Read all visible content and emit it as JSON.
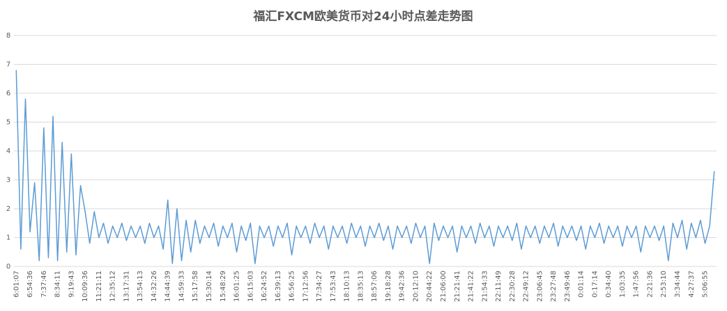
{
  "chart_data": {
    "type": "line",
    "title": "福汇FXCM欧美货币对24小时点差走势图",
    "categories": [
      "6:01:07",
      null,
      null,
      "6:54:36",
      null,
      null,
      "7:37:46",
      null,
      null,
      "8:34:11",
      null,
      null,
      "9:19:43",
      null,
      null,
      "10:09:36",
      null,
      null,
      "11:21:11",
      null,
      null,
      "12:35:12",
      null,
      null,
      "13:17:31",
      null,
      null,
      "13:54:13",
      null,
      null,
      "14:32:26",
      null,
      null,
      "14:44:39",
      null,
      null,
      "14:59:33",
      null,
      null,
      "15:17:58",
      null,
      null,
      "15:30:14",
      null,
      null,
      "15:48:29",
      null,
      null,
      "16:01:25",
      null,
      null,
      "16:15:03",
      null,
      null,
      "16:24:52",
      null,
      null,
      "16:39:13",
      null,
      null,
      "16:56:25",
      null,
      null,
      "17:12:56",
      null,
      null,
      "17:34:27",
      null,
      null,
      "17:53:43",
      null,
      null,
      "18:10:13",
      null,
      null,
      "18:35:13",
      null,
      null,
      "18:57:06",
      null,
      null,
      "19:18:28",
      null,
      null,
      "19:42:36",
      null,
      null,
      "20:12:10",
      null,
      null,
      "20:44:22",
      null,
      null,
      "21:06:00",
      null,
      null,
      "21:21:41",
      null,
      null,
      "21:41:22",
      null,
      null,
      "21:54:33",
      null,
      null,
      "22:11:49",
      null,
      null,
      "22:30:28",
      null,
      null,
      "22:49:12",
      null,
      null,
      "23:06:45",
      null,
      null,
      "23:27:48",
      null,
      null,
      "23:49:46",
      null,
      null,
      "0:01:14",
      null,
      null,
      "0:17:14",
      null,
      null,
      "0:34:40",
      null,
      null,
      "1:03:35",
      null,
      null,
      "1:47:56",
      null,
      null,
      "2:21:36",
      null,
      null,
      "2:53:10",
      null,
      null,
      "3:34:44",
      null,
      null,
      "4:27:37",
      null,
      null,
      "5:06:55",
      null,
      null
    ],
    "values": [
      6.8,
      0.6,
      5.8,
      1.2,
      2.9,
      0.2,
      4.8,
      0.3,
      5.2,
      0.2,
      4.3,
      0.5,
      3.9,
      0.4,
      2.8,
      1.9,
      0.8,
      1.9,
      1.0,
      1.5,
      0.8,
      1.4,
      1.0,
      1.5,
      0.9,
      1.4,
      1.0,
      1.4,
      0.8,
      1.5,
      1.0,
      1.4,
      0.6,
      2.3,
      0.1,
      2.0,
      0.2,
      1.6,
      0.5,
      1.6,
      0.8,
      1.4,
      1.0,
      1.5,
      0.7,
      1.4,
      1.0,
      1.5,
      0.5,
      1.4,
      0.9,
      1.5,
      0.1,
      1.4,
      1.0,
      1.4,
      0.7,
      1.4,
      1.0,
      1.5,
      0.4,
      1.4,
      1.0,
      1.4,
      0.8,
      1.5,
      1.0,
      1.4,
      0.6,
      1.4,
      1.0,
      1.4,
      0.8,
      1.5,
      1.0,
      1.4,
      0.7,
      1.4,
      1.0,
      1.5,
      0.9,
      1.4,
      0.6,
      1.4,
      1.0,
      1.4,
      0.8,
      1.5,
      1.0,
      1.4,
      0.1,
      1.5,
      0.9,
      1.4,
      1.0,
      1.4,
      0.5,
      1.4,
      1.0,
      1.4,
      0.8,
      1.5,
      1.0,
      1.4,
      0.7,
      1.4,
      1.0,
      1.4,
      0.9,
      1.5,
      0.6,
      1.4,
      1.0,
      1.4,
      0.8,
      1.4,
      1.0,
      1.5,
      0.7,
      1.4,
      1.0,
      1.4,
      0.9,
      1.4,
      0.6,
      1.4,
      1.0,
      1.5,
      0.8,
      1.4,
      1.0,
      1.4,
      0.7,
      1.4,
      1.0,
      1.4,
      0.5,
      1.4,
      1.0,
      1.4,
      0.9,
      1.4,
      0.2,
      1.5,
      1.0,
      1.6,
      0.6,
      1.5,
      1.0,
      1.6,
      0.8,
      1.4,
      3.3
    ],
    "color": "#5b9bd5",
    "ylim": [
      0,
      8
    ],
    "yticks": [
      0,
      1,
      2,
      3,
      4,
      5,
      6,
      7,
      8
    ],
    "grid": true
  }
}
